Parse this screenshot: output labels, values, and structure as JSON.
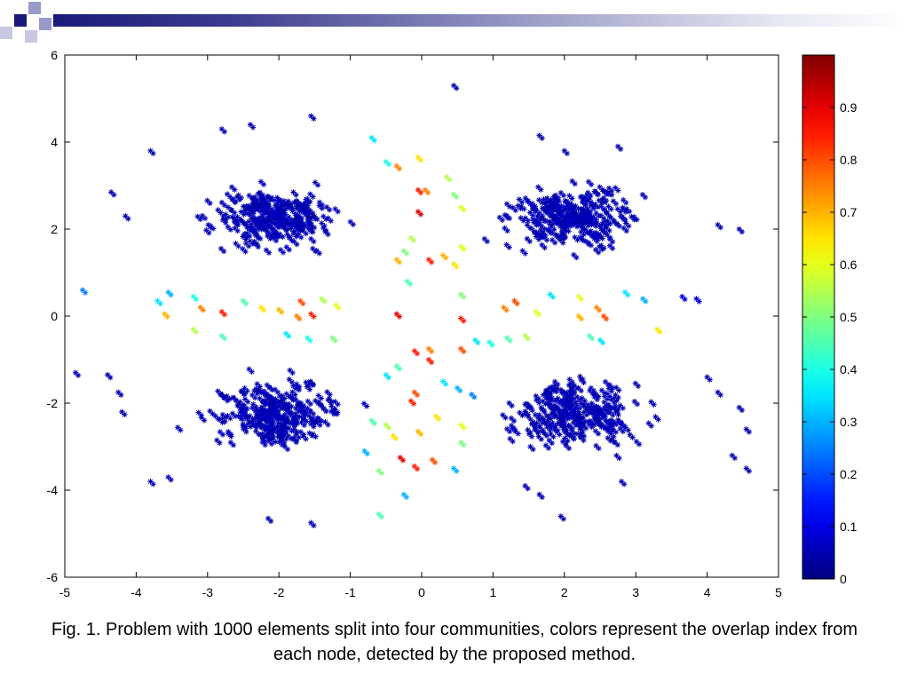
{
  "slide": {
    "caption": "Fig. 1. Problem with 1000 elements split into four communities, colors represent the overlap index from each node, detected by the proposed method.",
    "header_colors": [
      "#1a1a7a",
      "#9999cc"
    ]
  },
  "chart_data": {
    "type": "scatter",
    "title": "",
    "xlabel": "",
    "ylabel": "",
    "xlim": [
      -5,
      5
    ],
    "ylim": [
      -6,
      6
    ],
    "x_ticks": [
      "-5",
      "-4",
      "-3",
      "-2",
      "-1",
      "0",
      "1",
      "2",
      "3",
      "4",
      "5"
    ],
    "y_ticks": [
      "-6",
      "-4",
      "-2",
      "0",
      "2",
      "4",
      "6"
    ],
    "grid": false,
    "marker": "asterisk",
    "colormap": "jet",
    "color_scale": {
      "range": [
        0,
        1
      ],
      "ticks": [
        "0",
        "0.1",
        "0.2",
        "0.3",
        "0.4",
        "0.5",
        "0.6",
        "0.7",
        "0.8",
        "0.9"
      ]
    },
    "communities": [
      {
        "center": [
          -2.1,
          2.3
        ],
        "spread": [
          0.9,
          0.75
        ],
        "count": 250
      },
      {
        "center": [
          2.1,
          2.3
        ],
        "spread": [
          0.9,
          0.75
        ],
        "count": 250
      },
      {
        "center": [
          -2.1,
          -2.2
        ],
        "spread": [
          0.9,
          0.75
        ],
        "count": 250
      },
      {
        "center": [
          2.1,
          -2.2
        ],
        "spread": [
          0.9,
          0.75
        ],
        "count": 250
      }
    ],
    "points": [
      {
        "x": 0.45,
        "y": 5.3,
        "v": 0.05
      },
      {
        "x": -1.55,
        "y": 4.6,
        "v": 0.05
      },
      {
        "x": -2.4,
        "y": 4.4,
        "v": 0.05
      },
      {
        "x": -2.8,
        "y": 4.3,
        "v": 0.05
      },
      {
        "x": -3.8,
        "y": 3.8,
        "v": 0.05
      },
      {
        "x": -0.7,
        "y": 4.1,
        "v": 0.35
      },
      {
        "x": 1.65,
        "y": 4.15,
        "v": 0.05
      },
      {
        "x": 2.75,
        "y": 3.9,
        "v": 0.05
      },
      {
        "x": 2.0,
        "y": 3.8,
        "v": 0.05
      },
      {
        "x": -4.35,
        "y": 2.85,
        "v": 0.05
      },
      {
        "x": -4.15,
        "y": 2.3,
        "v": 0.05
      },
      {
        "x": -4.75,
        "y": 0.6,
        "v": 0.25
      },
      {
        "x": -4.85,
        "y": -1.3,
        "v": 0.05
      },
      {
        "x": -4.4,
        "y": -1.35,
        "v": 0.05
      },
      {
        "x": -4.25,
        "y": -1.75,
        "v": 0.05
      },
      {
        "x": -4.2,
        "y": -2.2,
        "v": 0.05
      },
      {
        "x": -3.8,
        "y": -3.8,
        "v": 0.05
      },
      {
        "x": -3.55,
        "y": -3.7,
        "v": 0.05
      },
      {
        "x": -2.15,
        "y": -4.65,
        "v": 0.05
      },
      {
        "x": -1.55,
        "y": -4.75,
        "v": 0.05
      },
      {
        "x": -0.6,
        "y": -4.55,
        "v": 0.45
      },
      {
        "x": -0.25,
        "y": -4.1,
        "v": 0.3
      },
      {
        "x": 1.45,
        "y": -3.9,
        "v": 0.05
      },
      {
        "x": 1.65,
        "y": -4.1,
        "v": 0.05
      },
      {
        "x": 1.95,
        "y": -4.6,
        "v": 0.05
      },
      {
        "x": 2.8,
        "y": -3.8,
        "v": 0.05
      },
      {
        "x": 4.35,
        "y": -3.2,
        "v": 0.05
      },
      {
        "x": 4.55,
        "y": -3.5,
        "v": 0.05
      },
      {
        "x": 4.55,
        "y": -2.6,
        "v": 0.05
      },
      {
        "x": 4.45,
        "y": -2.1,
        "v": 0.05
      },
      {
        "x": 4.15,
        "y": -1.75,
        "v": 0.05
      },
      {
        "x": 4.0,
        "y": -1.4,
        "v": 0.05
      },
      {
        "x": 4.45,
        "y": 2.0,
        "v": 0.05
      },
      {
        "x": 4.15,
        "y": 2.1,
        "v": 0.05
      },
      {
        "x": 3.85,
        "y": 0.4,
        "v": 0.1
      },
      {
        "x": 3.65,
        "y": 0.45,
        "v": 0.1
      },
      {
        "x": -0.35,
        "y": 3.45,
        "v": 0.75
      },
      {
        "x": -0.05,
        "y": 3.65,
        "v": 0.65
      },
      {
        "x": -0.5,
        "y": 3.55,
        "v": 0.4
      },
      {
        "x": 0.05,
        "y": 2.9,
        "v": 0.75
      },
      {
        "x": -0.05,
        "y": 2.9,
        "v": 0.85
      },
      {
        "x": -0.05,
        "y": 2.4,
        "v": 0.9
      },
      {
        "x": 0.35,
        "y": 3.2,
        "v": 0.55
      },
      {
        "x": 0.45,
        "y": 2.8,
        "v": 0.5
      },
      {
        "x": 0.55,
        "y": 2.5,
        "v": 0.6
      },
      {
        "x": -0.15,
        "y": 1.8,
        "v": 0.55
      },
      {
        "x": -0.25,
        "y": 1.5,
        "v": 0.5
      },
      {
        "x": -0.35,
        "y": 1.3,
        "v": 0.7
      },
      {
        "x": 0.1,
        "y": 1.3,
        "v": 0.85
      },
      {
        "x": 0.3,
        "y": 1.4,
        "v": 0.7
      },
      {
        "x": 0.45,
        "y": 1.2,
        "v": 0.65
      },
      {
        "x": 0.55,
        "y": 1.6,
        "v": 0.6
      },
      {
        "x": -0.2,
        "y": 0.8,
        "v": 0.45
      },
      {
        "x": 0.55,
        "y": 0.5,
        "v": 0.5
      },
      {
        "x": -0.35,
        "y": 0.05,
        "v": 0.9
      },
      {
        "x": 0.55,
        "y": -0.05,
        "v": 0.85
      },
      {
        "x": -1.7,
        "y": 0.35,
        "v": 0.8
      },
      {
        "x": -1.55,
        "y": 0.05,
        "v": 0.85
      },
      {
        "x": -1.75,
        "y": 0.0,
        "v": 0.75
      },
      {
        "x": -2.0,
        "y": 0.15,
        "v": 0.7
      },
      {
        "x": -2.25,
        "y": 0.2,
        "v": 0.65
      },
      {
        "x": -2.8,
        "y": 0.1,
        "v": 0.85
      },
      {
        "x": -3.1,
        "y": 0.2,
        "v": 0.75
      },
      {
        "x": -3.6,
        "y": 0.05,
        "v": 0.7
      },
      {
        "x": -3.7,
        "y": 0.35,
        "v": 0.35
      },
      {
        "x": -3.55,
        "y": 0.55,
        "v": 0.3
      },
      {
        "x": -3.2,
        "y": 0.45,
        "v": 0.4
      },
      {
        "x": -2.5,
        "y": 0.35,
        "v": 0.45
      },
      {
        "x": -1.4,
        "y": 0.4,
        "v": 0.55
      },
      {
        "x": -1.2,
        "y": 0.25,
        "v": 0.6
      },
      {
        "x": -1.25,
        "y": -0.5,
        "v": 0.5
      },
      {
        "x": -1.6,
        "y": -0.5,
        "v": 0.4
      },
      {
        "x": -1.9,
        "y": -0.4,
        "v": 0.35
      },
      {
        "x": -2.8,
        "y": -0.45,
        "v": 0.45
      },
      {
        "x": -3.2,
        "y": -0.3,
        "v": 0.55
      },
      {
        "x": 1.3,
        "y": 0.35,
        "v": 0.8
      },
      {
        "x": 1.15,
        "y": 0.2,
        "v": 0.75
      },
      {
        "x": 1.6,
        "y": 0.1,
        "v": 0.6
      },
      {
        "x": 2.2,
        "y": 0.45,
        "v": 0.6
      },
      {
        "x": 2.45,
        "y": 0.2,
        "v": 0.75
      },
      {
        "x": 2.55,
        "y": 0.0,
        "v": 0.8
      },
      {
        "x": 2.2,
        "y": 0.0,
        "v": 0.7
      },
      {
        "x": 2.85,
        "y": 0.55,
        "v": 0.35
      },
      {
        "x": 3.1,
        "y": 0.4,
        "v": 0.3
      },
      {
        "x": 1.8,
        "y": 0.5,
        "v": 0.35
      },
      {
        "x": 1.45,
        "y": -0.45,
        "v": 0.55
      },
      {
        "x": 1.2,
        "y": -0.5,
        "v": 0.45
      },
      {
        "x": 0.95,
        "y": -0.6,
        "v": 0.4
      },
      {
        "x": 0.75,
        "y": -0.55,
        "v": 0.35
      },
      {
        "x": 2.35,
        "y": -0.45,
        "v": 0.45
      },
      {
        "x": 2.5,
        "y": -0.55,
        "v": 0.35
      },
      {
        "x": 3.3,
        "y": -0.3,
        "v": 0.65
      },
      {
        "x": -0.1,
        "y": -0.8,
        "v": 0.85
      },
      {
        "x": 0.1,
        "y": -0.75,
        "v": 0.75
      },
      {
        "x": 0.1,
        "y": -1.0,
        "v": 0.85
      },
      {
        "x": 0.55,
        "y": -0.75,
        "v": 0.8
      },
      {
        "x": -0.35,
        "y": -1.15,
        "v": 0.45
      },
      {
        "x": -0.5,
        "y": -1.35,
        "v": 0.35
      },
      {
        "x": 0.3,
        "y": -1.5,
        "v": 0.35
      },
      {
        "x": 0.5,
        "y": -1.65,
        "v": 0.3
      },
      {
        "x": -0.1,
        "y": -1.75,
        "v": 0.8
      },
      {
        "x": -0.15,
        "y": -1.95,
        "v": 0.85
      },
      {
        "x": 0.2,
        "y": -2.3,
        "v": 0.65
      },
      {
        "x": 0.55,
        "y": -2.5,
        "v": 0.6
      },
      {
        "x": -0.05,
        "y": -2.65,
        "v": 0.7
      },
      {
        "x": -0.4,
        "y": -2.75,
        "v": 0.65
      },
      {
        "x": -0.5,
        "y": -2.5,
        "v": 0.55
      },
      {
        "x": -0.7,
        "y": -2.4,
        "v": 0.45
      },
      {
        "x": -0.3,
        "y": -3.25,
        "v": 0.9
      },
      {
        "x": -0.1,
        "y": -3.45,
        "v": 0.85
      },
      {
        "x": 0.15,
        "y": -3.3,
        "v": 0.8
      },
      {
        "x": -0.6,
        "y": -3.55,
        "v": 0.5
      },
      {
        "x": 0.45,
        "y": -3.5,
        "v": 0.3
      },
      {
        "x": 0.55,
        "y": -2.9,
        "v": 0.5
      },
      {
        "x": -0.8,
        "y": -3.1,
        "v": 0.3
      },
      {
        "x": 0.7,
        "y": -1.8,
        "v": 0.25
      }
    ]
  }
}
